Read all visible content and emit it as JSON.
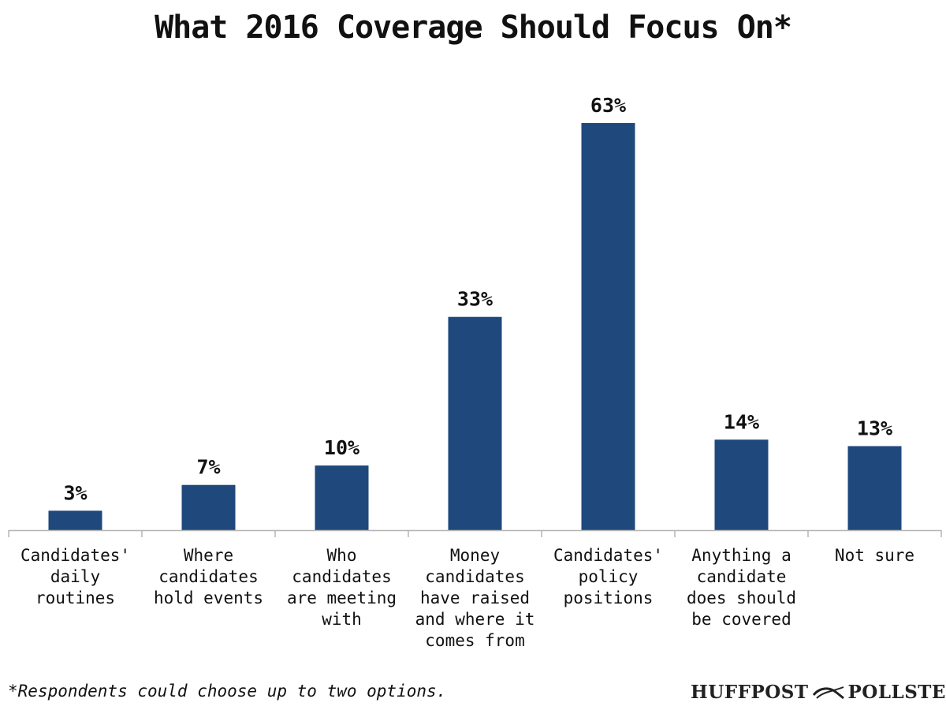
{
  "page": {
    "title": "What 2016 Coverage Should Focus On*",
    "footnote": "*Respondents could choose up to two options.",
    "logo": {
      "left": "HUFFPOST",
      "right": "POLLSTER"
    }
  },
  "chart_data": {
    "type": "bar",
    "title": "What 2016 Coverage Should Focus On*",
    "xlabel": "",
    "ylabel": "",
    "grid": false,
    "legend": "none",
    "ylim": [
      0,
      65
    ],
    "bar_color": "#1f487c",
    "categories": [
      [
        "Candidates'",
        "daily",
        "routines"
      ],
      [
        "Where",
        "candidates",
        "hold events"
      ],
      [
        "Who",
        "candidates",
        "are meeting",
        "with"
      ],
      [
        "Money",
        "candidates",
        "have raised",
        "and where it",
        "comes from"
      ],
      [
        "Candidates'",
        "policy",
        "positions"
      ],
      [
        "Anything a",
        "candidate",
        "does should",
        "be covered"
      ],
      [
        "Not sure"
      ]
    ],
    "values": [
      3,
      7,
      10,
      33,
      63,
      14,
      13
    ],
    "data_labels": [
      "3%",
      "7%",
      "10%",
      "33%",
      "63%",
      "14%",
      "13%"
    ]
  }
}
